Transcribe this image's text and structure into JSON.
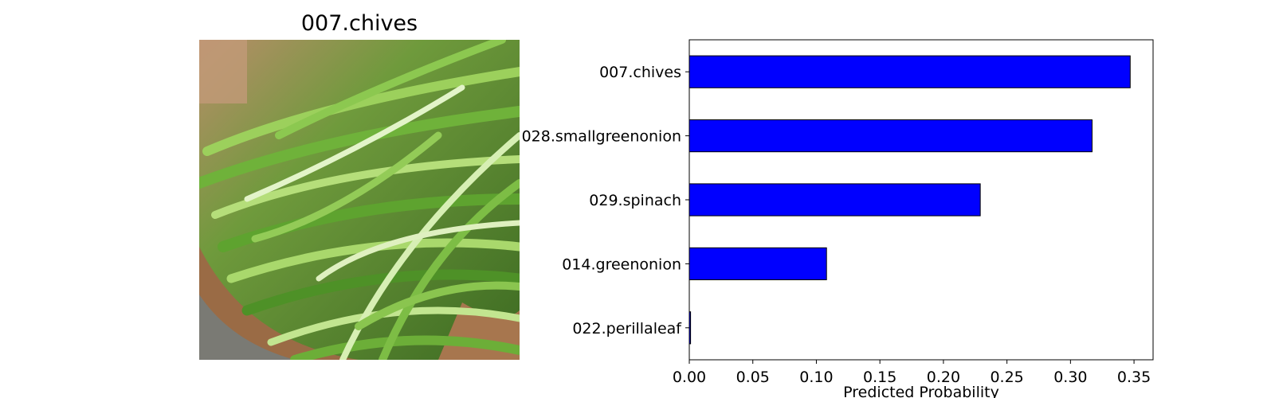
{
  "image_panel": {
    "title": "007.chives"
  },
  "chart_data": {
    "type": "bar",
    "orientation": "horizontal",
    "categories": [
      "007.chives",
      "028.smallgreenonion",
      "029.spinach",
      "014.greenonion",
      "022.perillaleaf"
    ],
    "values": [
      0.347,
      0.317,
      0.229,
      0.108,
      0.001
    ],
    "xlabel": "Predicted Probability",
    "ylabel": "",
    "xlim": [
      0,
      0.365
    ],
    "xticks": [
      "0.00",
      "0.05",
      "0.10",
      "0.15",
      "0.20",
      "0.25",
      "0.30",
      "0.35"
    ],
    "bar_color": "#0000ff",
    "edge_color": "#000000",
    "grid": false
  }
}
